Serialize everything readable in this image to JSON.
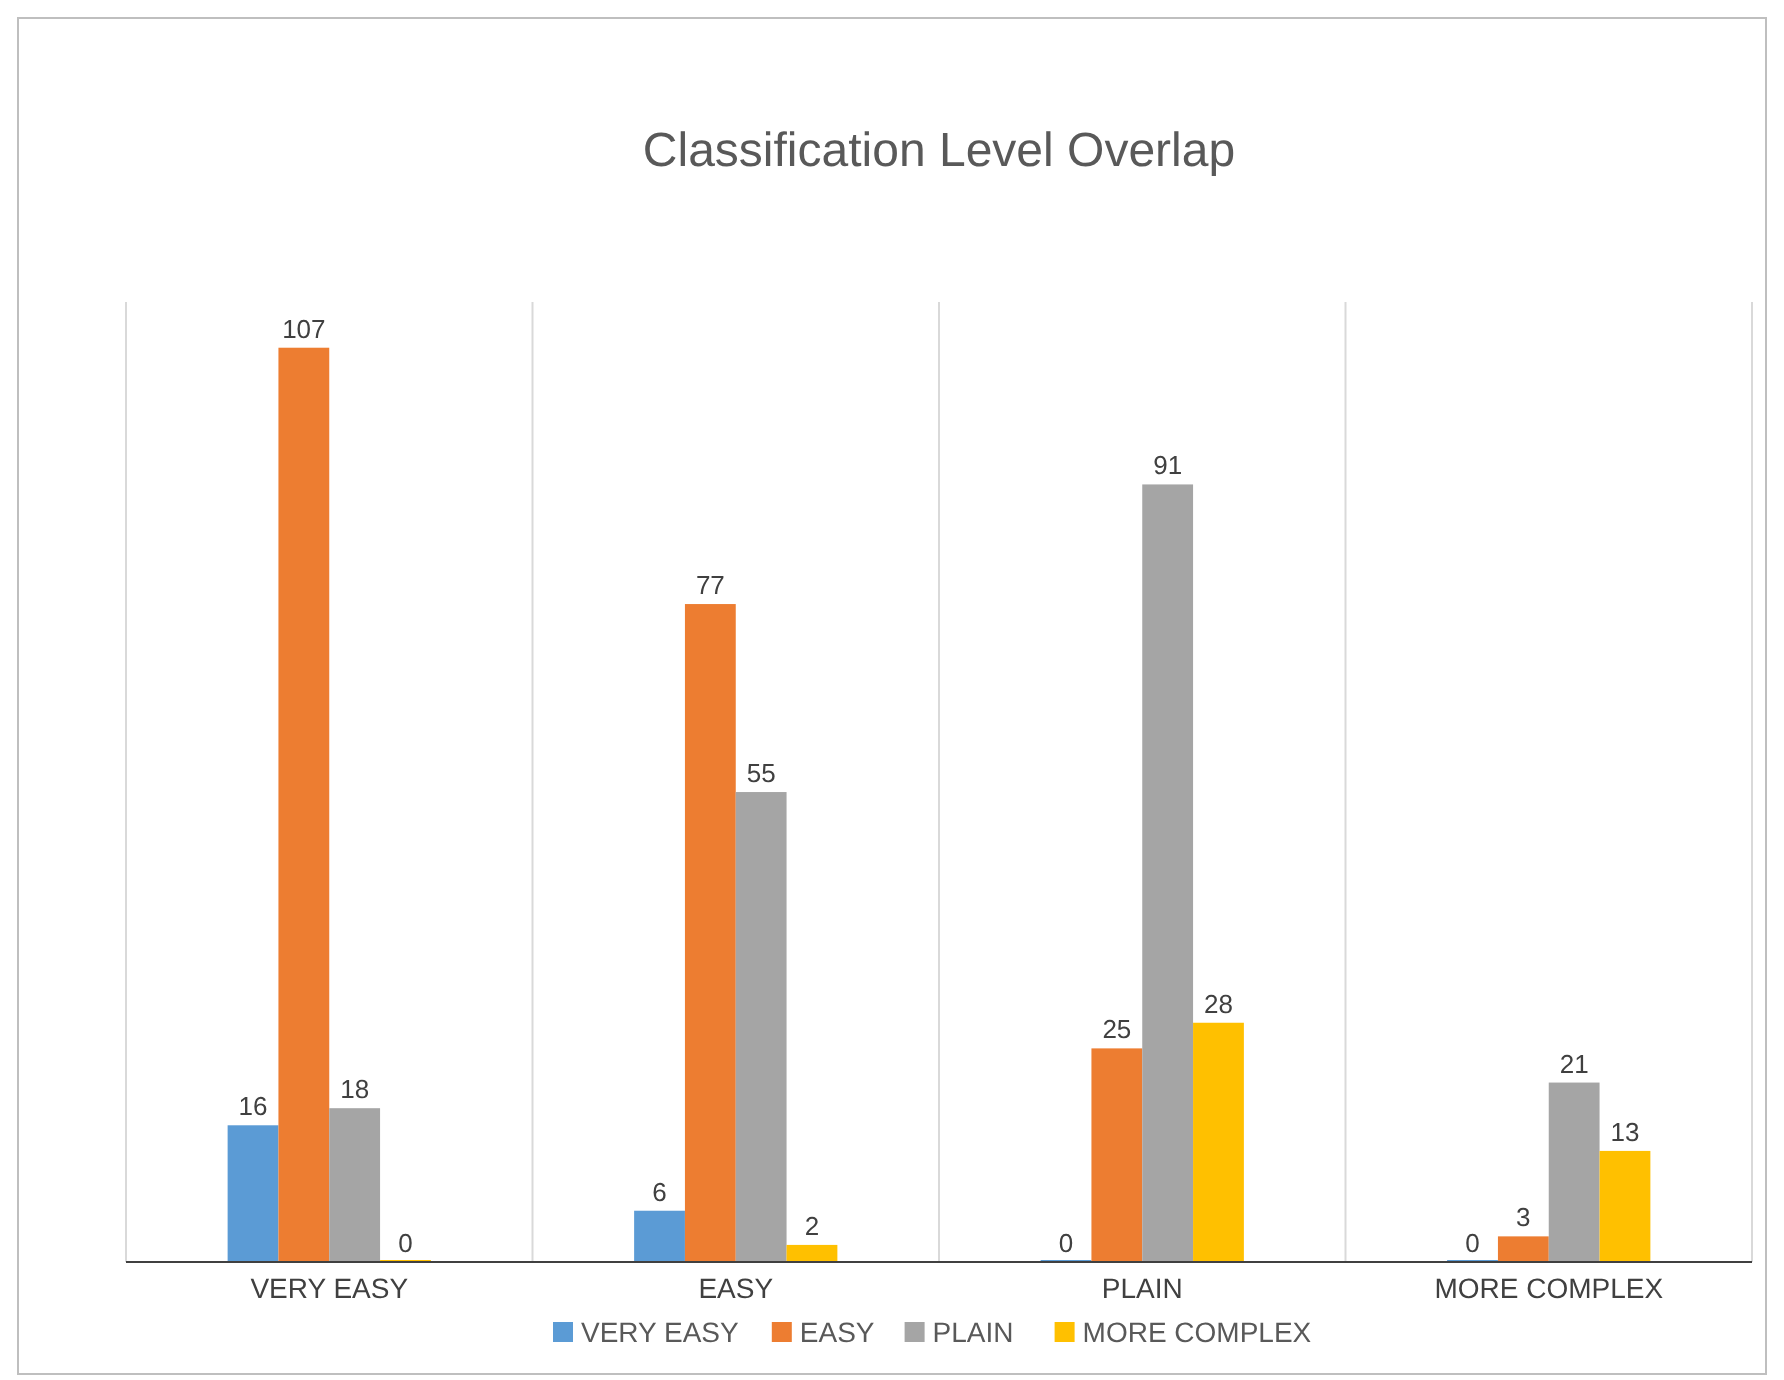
{
  "chart_data": {
    "type": "bar",
    "title": "Classification Level Overlap",
    "categories": [
      "VERY EASY",
      "EASY",
      "PLAIN",
      "MORE COMPLEX"
    ],
    "series": [
      {
        "name": "VERY EASY",
        "color": "#5b9bd5",
        "values": [
          16,
          6,
          0,
          0
        ]
      },
      {
        "name": "EASY",
        "color": "#ed7d31",
        "values": [
          107,
          77,
          25,
          3
        ]
      },
      {
        "name": "PLAIN",
        "color": "#a5a5a5",
        "values": [
          18,
          55,
          91,
          21
        ]
      },
      {
        "name": "MORE COMPLEX",
        "color": "#ffc000",
        "values": [
          0,
          2,
          28,
          13
        ]
      }
    ],
    "data_labels": true,
    "grid": "x",
    "legend": "bottom"
  }
}
